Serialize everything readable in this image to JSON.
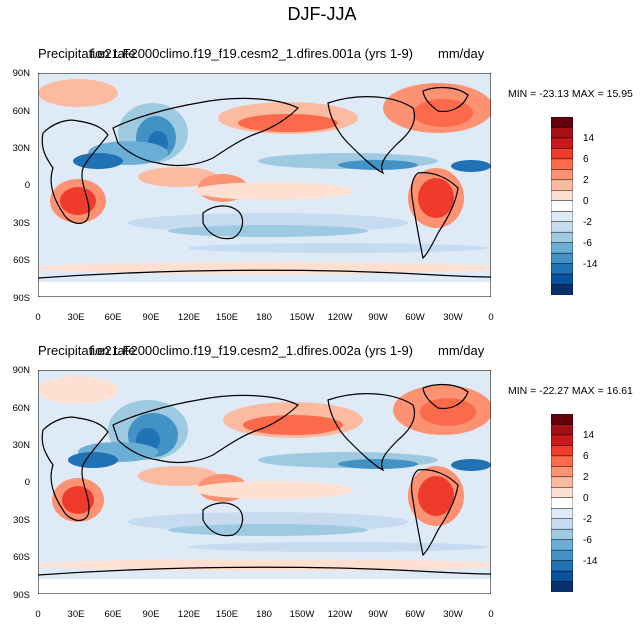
{
  "title": "DJF-JJA",
  "panels": [
    {
      "variable": "Precipitation rate",
      "case": "f.e21.F2000climo.f19_f19.cesm2_1.dfires.001a (yrs 1-9)",
      "units": "mm/day",
      "min_max": "MIN = -23.13  MAX =  15.95"
    },
    {
      "variable": "Precipitation rate",
      "case": "f.e21.F2000climo.f19_f19.cesm2_1.dfires.002a (yrs 1-9)",
      "units": "mm/day",
      "min_max": "MIN = -22.27  MAX =  16.61"
    }
  ],
  "lat_ticks": [
    "90N",
    "60N",
    "30N",
    "0",
    "30S",
    "60S",
    "90S"
  ],
  "lon_ticks": [
    "0",
    "30E",
    "60E",
    "90E",
    "120E",
    "150E",
    "180",
    "150W",
    "120W",
    "90W",
    "60W",
    "30W",
    "0"
  ],
  "colorbar": {
    "labels": [
      "14",
      "6",
      "2",
      "0",
      "-2",
      "-6",
      "-14"
    ],
    "colors": [
      "#67000d",
      "#a50f15",
      "#cb181d",
      "#ef3b2c",
      "#fb6a4a",
      "#fc9272",
      "#fcbba1",
      "#fee0d2",
      "#ffffff",
      "#deebf7",
      "#c6dbef",
      "#9ecae1",
      "#6baed6",
      "#4292c6",
      "#2171b5",
      "#08519c",
      "#08306b"
    ]
  }
}
